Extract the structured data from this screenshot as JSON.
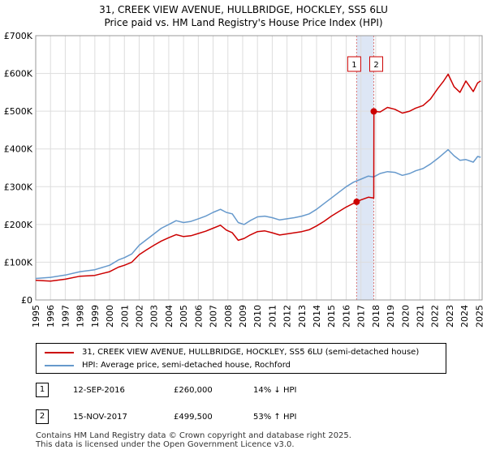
{
  "title_line1": "31, CREEK VIEW AVENUE, HULLBRIDGE, HOCKLEY, SS5 6LU",
  "title_line2": "Price paid vs. HM Land Registry's House Price Index (HPI)",
  "colors": {
    "property": "#cc0000",
    "hpi": "#6699cc",
    "band": "#dde6f5",
    "grid": "#dddddd",
    "vline": "#dd7777"
  },
  "chart_data": {
    "type": "line",
    "title": "31, CREEK VIEW AVENUE, HULLBRIDGE, HOCKLEY, SS5 6LU",
    "subtitle": "Price paid vs. HM Land Registry's House Price Index (HPI)",
    "xlabel": "",
    "ylabel": "",
    "xlim": [
      1995.0,
      2025.2
    ],
    "ylim": [
      0,
      700000
    ],
    "y_ticks": [
      {
        "value": 0,
        "label": "£0"
      },
      {
        "value": 100000,
        "label": "£100K"
      },
      {
        "value": 200000,
        "label": "£200K"
      },
      {
        "value": 300000,
        "label": "£300K"
      },
      {
        "value": 400000,
        "label": "£400K"
      },
      {
        "value": 500000,
        "label": "£500K"
      },
      {
        "value": 600000,
        "label": "£600K"
      },
      {
        "value": 700000,
        "label": "£700K"
      }
    ],
    "x_ticks": [
      "1995",
      "1996",
      "1997",
      "1998",
      "1999",
      "2000",
      "2001",
      "2002",
      "2003",
      "2004",
      "2005",
      "2006",
      "2007",
      "2008",
      "2009",
      "2010",
      "2011",
      "2012",
      "2013",
      "2014",
      "2015",
      "2016",
      "2017",
      "2018",
      "2019",
      "2020",
      "2021",
      "2022",
      "2023",
      "2024",
      "2025"
    ],
    "grid": true,
    "series": [
      {
        "name": "HPI",
        "x": [
          1995.0,
          1996.0,
          1997.0,
          1998.0,
          1999.0,
          2000.0,
          2000.6,
          2001.0,
          2001.5,
          2002.0,
          2002.5,
          2003.0,
          2003.5,
          2004.0,
          2004.5,
          2005.0,
          2005.5,
          2006.0,
          2006.5,
          2007.0,
          2007.5,
          2007.9,
          2008.3,
          2008.7,
          2009.1,
          2009.5,
          2010.0,
          2010.5,
          2011.0,
          2011.5,
          2012.0,
          2012.5,
          2013.0,
          2013.5,
          2014.0,
          2014.5,
          2015.0,
          2015.5,
          2016.0,
          2016.5,
          2017.0,
          2017.5,
          2017.87,
          2018.3,
          2018.8,
          2019.3,
          2019.8,
          2020.3,
          2020.7,
          2021.2,
          2021.7,
          2022.2,
          2022.6,
          2022.9,
          2023.3,
          2023.7,
          2024.1,
          2024.6,
          2024.9,
          2025.1
        ],
        "values": [
          57000,
          60000,
          66000,
          75000,
          80000,
          92000,
          106000,
          112000,
          122000,
          145000,
          160000,
          175000,
          190000,
          200000,
          210000,
          205000,
          208000,
          215000,
          222000,
          232000,
          240000,
          232000,
          228000,
          205000,
          200000,
          210000,
          220000,
          222000,
          218000,
          212000,
          215000,
          218000,
          222000,
          228000,
          240000,
          255000,
          270000,
          285000,
          300000,
          312000,
          320000,
          328000,
          326000,
          335000,
          340000,
          338000,
          330000,
          335000,
          342000,
          348000,
          360000,
          375000,
          388000,
          398000,
          382000,
          370000,
          372000,
          365000,
          380000,
          378000
        ]
      },
      {
        "name": "31, CREEK VIEW AVENUE, HULLBRIDGE, HOCKLEY, SS5 6LU (semi-detached house)",
        "x": [
          1995.0,
          1996.0,
          1997.0,
          1998.0,
          1999.0,
          2000.0,
          2000.6,
          2001.0,
          2001.5,
          2002.0,
          2002.5,
          2003.0,
          2003.5,
          2004.0,
          2004.5,
          2005.0,
          2005.5,
          2006.0,
          2006.5,
          2007.0,
          2007.5,
          2007.9,
          2008.3,
          2008.7,
          2009.1,
          2009.5,
          2010.0,
          2010.5,
          2011.0,
          2011.5,
          2012.0,
          2012.5,
          2013.0,
          2013.5,
          2014.0,
          2014.5,
          2015.0,
          2015.5,
          2016.0,
          2016.5,
          2016.7,
          2017.0,
          2017.5,
          2017.87,
          2017.88,
          2018.3,
          2018.8,
          2019.3,
          2019.8,
          2020.3,
          2020.7,
          2021.2,
          2021.7,
          2022.2,
          2022.6,
          2022.9,
          2023.3,
          2023.7,
          2024.1,
          2024.6,
          2024.9,
          2025.1
        ],
        "values": [
          52000,
          50000,
          55000,
          63000,
          65000,
          75000,
          87000,
          92000,
          100000,
          120000,
          133000,
          145000,
          156000,
          165000,
          173000,
          168000,
          170000,
          176000,
          182000,
          190000,
          198000,
          185000,
          178000,
          158000,
          163000,
          172000,
          181000,
          183000,
          178000,
          172000,
          175000,
          178000,
          181000,
          186000,
          196000,
          208000,
          222000,
          234000,
          246000,
          256000,
          260000,
          265000,
          272000,
          270000,
          499500,
          498000,
          510000,
          505000,
          495000,
          500000,
          508000,
          515000,
          532000,
          560000,
          580000,
          598000,
          565000,
          550000,
          580000,
          552000,
          575000,
          580000
        ]
      }
    ],
    "sales": [
      {
        "id": "1",
        "year": 2016.71,
        "value": 260000
      },
      {
        "id": "2",
        "year": 2017.87,
        "value": 499500
      }
    ],
    "highlight_band": [
      2016.71,
      2017.87
    ]
  },
  "legend": {
    "property_label": "31, CREEK VIEW AVENUE, HULLBRIDGE, HOCKLEY, SS5 6LU (semi-detached house)",
    "hpi_label": "HPI: Average price, semi-detached house, Rochford"
  },
  "sales_table": [
    {
      "id": "1",
      "date": "12-SEP-2016",
      "price": "£260,000",
      "hpi": "14% ↓ HPI"
    },
    {
      "id": "2",
      "date": "15-NOV-2017",
      "price": "£499,500",
      "hpi": "53% ↑ HPI"
    }
  ],
  "footer_line1": "Contains HM Land Registry data © Crown copyright and database right 2025.",
  "footer_line2": "This data is licensed under the Open Government Licence v3.0."
}
